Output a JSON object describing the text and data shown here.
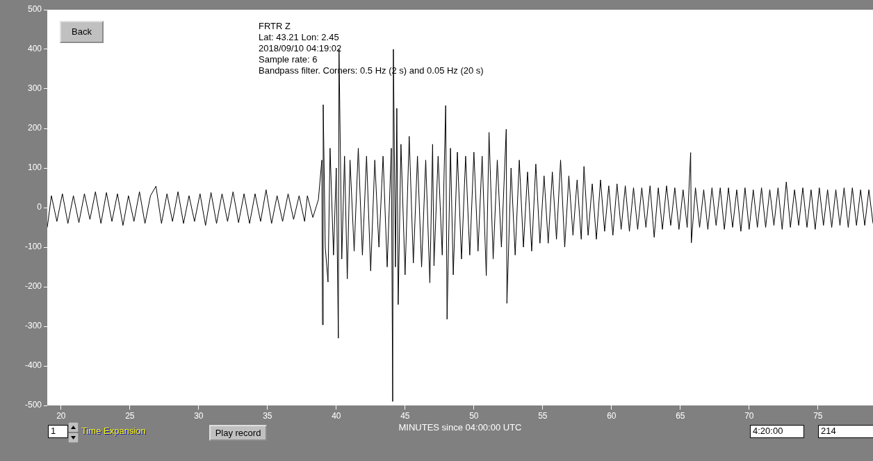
{
  "chart_data": {
    "type": "line",
    "xlabel": "MINUTES since 04:00:00 UTC",
    "annotations": [
      "FRTR  Z",
      "Lat: 43.21 Lon: 2.45",
      "2018/09/10 04:19:02",
      "Sample rate: 6",
      "Bandpass filter. Corners: 0.5 Hz (2 s) and 0.05 Hz (20 s)",
      "Back",
      "1",
      "Time Expansion",
      "Play record",
      "4:20:00",
      "214"
    ],
    "xlim": [
      19,
      79
    ],
    "xticks": [
      20,
      25,
      30,
      35,
      40,
      45,
      50,
      55,
      60,
      65,
      70,
      75
    ],
    "ylim": [
      -500,
      500
    ],
    "yticks": [
      -500,
      -400,
      -300,
      -200,
      -100,
      0,
      100,
      200,
      300,
      400,
      500
    ],
    "grid": false,
    "legend": false,
    "series": [
      {
        "color": "#000000",
        "x": [
          19.0,
          19.3,
          19.7,
          20.1,
          20.5,
          20.9,
          21.3,
          21.7,
          22.1,
          22.5,
          22.9,
          23.3,
          23.7,
          24.1,
          24.5,
          24.9,
          25.3,
          25.7,
          26.1,
          26.5,
          26.9,
          27.3,
          27.7,
          28.1,
          28.5,
          28.9,
          29.3,
          29.7,
          30.1,
          30.5,
          30.9,
          31.3,
          31.7,
          32.1,
          32.5,
          32.9,
          33.3,
          33.7,
          34.1,
          34.5,
          34.9,
          35.3,
          35.7,
          36.1,
          36.5,
          36.9,
          37.3,
          37.7,
          37.9,
          38.3,
          38.7,
          38.95,
          39.0,
          39.05,
          39.2,
          39.4,
          39.55,
          39.8,
          40.0,
          40.15,
          40.2,
          40.4,
          40.6,
          40.8,
          41.0,
          41.3,
          41.6,
          41.9,
          42.2,
          42.5,
          42.8,
          43.1,
          43.4,
          43.7,
          44.0,
          44.1,
          44.15,
          44.3,
          44.4,
          44.5,
          44.7,
          45.0,
          45.3,
          45.6,
          45.9,
          46.2,
          46.5,
          46.8,
          47.0,
          47.1,
          47.4,
          47.7,
          47.95,
          48.05,
          48.3,
          48.5,
          48.8,
          49.1,
          49.4,
          49.7,
          50.0,
          50.3,
          50.6,
          50.9,
          51.1,
          51.4,
          51.7,
          52.0,
          52.35,
          52.4,
          52.7,
          53.0,
          53.3,
          53.6,
          53.9,
          54.2,
          54.5,
          54.8,
          55.1,
          55.4,
          55.7,
          56.0,
          56.3,
          56.6,
          56.9,
          57.2,
          57.5,
          57.8,
          58.0,
          58.3,
          58.6,
          58.9,
          59.2,
          59.5,
          59.8,
          60.1,
          60.4,
          60.7,
          61.0,
          61.3,
          61.6,
          61.9,
          62.2,
          62.5,
          62.8,
          63.1,
          63.4,
          63.7,
          64.0,
          64.3,
          64.6,
          64.9,
          65.2,
          65.5,
          65.75,
          65.8,
          66.1,
          66.4,
          66.7,
          67.0,
          67.3,
          67.6,
          67.9,
          68.2,
          68.5,
          68.8,
          69.1,
          69.4,
          69.7,
          70.0,
          70.3,
          70.6,
          70.9,
          71.2,
          71.5,
          71.8,
          72.1,
          72.4,
          72.7,
          73.0,
          73.3,
          73.6,
          73.9,
          74.2,
          74.5,
          74.8,
          75.1,
          75.4,
          75.7,
          76.0,
          76.3,
          76.6,
          76.9,
          77.2,
          77.5,
          77.8,
          78.1,
          78.4,
          78.7,
          79.0
        ],
        "values": [
          -50,
          30,
          -35,
          35,
          -40,
          30,
          -38,
          35,
          -30,
          40,
          -40,
          38,
          -35,
          35,
          -45,
          30,
          -35,
          40,
          -40,
          30,
          54,
          -40,
          35,
          -35,
          40,
          -40,
          30,
          -35,
          35,
          -45,
          38,
          -40,
          35,
          -35,
          40,
          -38,
          35,
          -40,
          35,
          -35,
          45,
          -40,
          30,
          -35,
          35,
          -30,
          30,
          -35,
          30,
          -25,
          20,
          120,
          -296,
          260,
          -100,
          -188,
          150,
          -120,
          100,
          -330,
          400,
          -130,
          130,
          -180,
          120,
          -110,
          150,
          -120,
          130,
          -160,
          120,
          -100,
          130,
          -150,
          150,
          -490,
          400,
          -150,
          251,
          -245,
          160,
          -170,
          180,
          -140,
          130,
          -150,
          120,
          -190,
          160,
          -147,
          130,
          -120,
          258,
          -282,
          150,
          -170,
          140,
          -130,
          130,
          -120,
          140,
          -110,
          130,
          -172,
          190,
          -130,
          120,
          -100,
          198,
          -242,
          100,
          -120,
          120,
          -100,
          90,
          -110,
          110,
          -90,
          80,
          -90,
          90,
          -80,
          120,
          -100,
          80,
          -70,
          70,
          -80,
          104,
          -70,
          60,
          -80,
          70,
          -60,
          55,
          -70,
          60,
          -55,
          55,
          -60,
          50,
          -55,
          50,
          -50,
          55,
          -75,
          50,
          -55,
          55,
          -45,
          50,
          -55,
          45,
          -50,
          139,
          -89,
          50,
          -50,
          45,
          -55,
          50,
          -45,
          50,
          -55,
          50,
          -50,
          45,
          -60,
          50,
          -55,
          45,
          -50,
          50,
          -50,
          45,
          -45,
          50,
          -55,
          65,
          -50,
          45,
          -45,
          50,
          -50,
          45,
          -55,
          50,
          -45,
          45,
          -50,
          45,
          -45,
          50,
          -50,
          50,
          -45,
          45,
          -45,
          45,
          -40
        ]
      }
    ]
  }
}
